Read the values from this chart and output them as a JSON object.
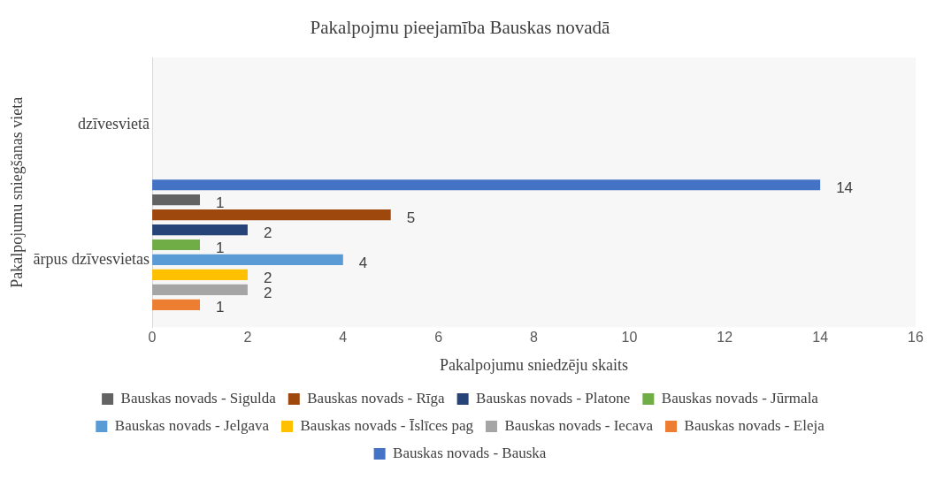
{
  "chart_data": {
    "type": "bar",
    "orientation": "horizontal",
    "title": "Pakalpojmu pieejamība Bauskas novadā",
    "xlabel": "Pakalpojumu sniedzēju skaits",
    "ylabel": "Pakalpojumu sniegšanas vieta",
    "categories": [
      "dzīvesvietā",
      "ārpus dzīvesvietas"
    ],
    "series": [
      {
        "name": "Bauskas novads - Sigulda",
        "color": "#636363",
        "values": [
          null,
          1
        ]
      },
      {
        "name": "Bauskas novads - Rīga",
        "color": "#9e480e",
        "values": [
          null,
          5
        ]
      },
      {
        "name": "Bauskas novads - Platone",
        "color": "#264478",
        "values": [
          null,
          2
        ]
      },
      {
        "name": "Bauskas novads - Jūrmala",
        "color": "#70ad47",
        "values": [
          null,
          1
        ]
      },
      {
        "name": "Bauskas novads - Jelgava",
        "color": "#5b9bd5",
        "values": [
          null,
          4
        ]
      },
      {
        "name": "Bauskas novads - Īslīces pag",
        "color": "#ffc000",
        "values": [
          null,
          2
        ]
      },
      {
        "name": "Bauskas novads - Iecava",
        "color": "#a5a5a5",
        "values": [
          null,
          2
        ]
      },
      {
        "name": "Bauskas novads - Eleja",
        "color": "#ed7d31",
        "values": [
          null,
          1
        ]
      },
      {
        "name": "Bauskas novads - Bauska",
        "color": "#4472c4",
        "values": [
          14,
          null
        ]
      }
    ],
    "xlim": [
      0,
      16
    ],
    "xticks": [
      0,
      2,
      4,
      6,
      8,
      10,
      12,
      14,
      16
    ],
    "grid": false,
    "legend": "bottom",
    "data_labels": true
  }
}
